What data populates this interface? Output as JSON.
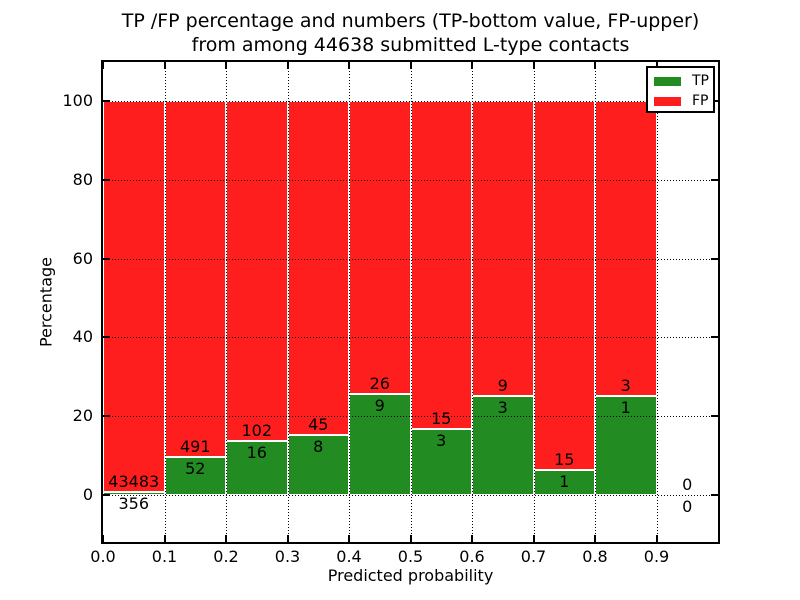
{
  "title": {
    "line1": "TP /FP percentage and numbers (TP-bottom value, FP-upper)",
    "line2": "from among 44638 submitted L-type contacts"
  },
  "axes": {
    "xlabel": "Predicted probability",
    "ylabel": "Percentage"
  },
  "legend": {
    "items": [
      {
        "label": "TP",
        "color": "#228b22"
      },
      {
        "label": "FP",
        "color": "#ff1e1e"
      }
    ]
  },
  "chart_data": {
    "type": "bar",
    "subtype": "stacked-percentage-histogram",
    "title": "TP /FP percentage and numbers (TP-bottom value, FP-upper) from among 44638 submitted L-type contacts",
    "xlabel": "Predicted probability",
    "ylabel": "Percentage",
    "total_contacts": 44638,
    "xlim": [
      0.0,
      1.0
    ],
    "ylim": [
      -12,
      110
    ],
    "x_tick_labels": [
      "0.0",
      "0.1",
      "0.2",
      "0.3",
      "0.4",
      "0.5",
      "0.6",
      "0.7",
      "0.8",
      "0.9"
    ],
    "y_tick_values": [
      0,
      20,
      40,
      60,
      80,
      100
    ],
    "y_tick_labels": [
      "0",
      "20",
      "40",
      "60",
      "80",
      "100"
    ],
    "grid": "dotted",
    "legend_position": "upper right",
    "bin_start": [
      0.0,
      0.1,
      0.2,
      0.3,
      0.4,
      0.5,
      0.6,
      0.7,
      0.8,
      0.9
    ],
    "bin_width": 0.1,
    "series": [
      {
        "name": "TP",
        "color": "#228b22",
        "counts": [
          356,
          52,
          16,
          8,
          9,
          3,
          3,
          1,
          1,
          0
        ],
        "percent": [
          0.81,
          9.58,
          13.56,
          15.09,
          25.71,
          16.67,
          25.0,
          6.25,
          25.0,
          0
        ]
      },
      {
        "name": "FP",
        "color": "#ff1e1e",
        "counts": [
          43483,
          491,
          102,
          45,
          26,
          15,
          9,
          15,
          3,
          0
        ],
        "percent": [
          99.19,
          90.42,
          86.44,
          84.91,
          74.29,
          83.33,
          75.0,
          93.75,
          75.0,
          0
        ]
      }
    ]
  }
}
